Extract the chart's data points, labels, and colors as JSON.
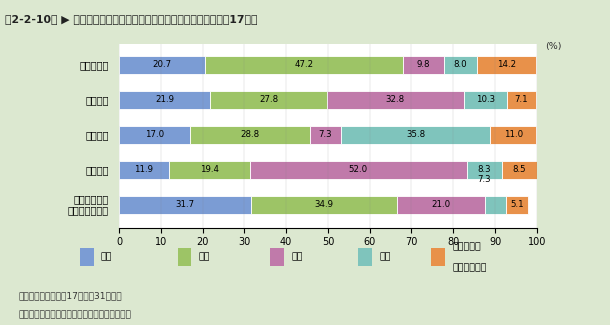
{
  "title": "第2-2-10図 ▶ 非営利団体・公的機関の研究者の専門別構成比（平成17年）",
  "categories": [
    "非営利団体",
    "公的機関",
    "うち国営",
    "うち公営",
    "うち特殊法人\n・独立行政法人"
  ],
  "series_names": [
    "理学",
    "工学",
    "農学",
    "保健",
    "人文・社会\n科学・その他"
  ],
  "series_values": [
    [
      20.7,
      21.9,
      17.0,
      11.9,
      31.7
    ],
    [
      47.2,
      27.8,
      28.8,
      19.4,
      34.9
    ],
    [
      9.8,
      32.8,
      7.3,
      52.0,
      21.0
    ],
    [
      8.0,
      10.3,
      35.8,
      8.3,
      5.1
    ],
    [
      14.2,
      7.1,
      11.0,
      8.5,
      5.1
    ]
  ],
  "bar_labels": [
    [
      "20.7",
      "21.9",
      "17.0",
      "11.9",
      "31.7"
    ],
    [
      "47.2",
      "27.8",
      "28.8",
      "19.4",
      "34.9"
    ],
    [
      "9.8",
      "32.8",
      "7.3",
      "52.0",
      "21.0"
    ],
    [
      "8.0",
      "10.3",
      "35.8",
      "8.3",
      ""
    ],
    [
      "14.2",
      "7.1",
      "11.0",
      "8.5",
      "5.1"
    ]
  ],
  "extra_label_7_3": {
    "row": 3,
    "value": "7.3"
  },
  "colors": [
    "#7b9cd4",
    "#9dc466",
    "#c07aaa",
    "#7fc4bc",
    "#e8914a"
  ],
  "bg_color": "#dce8d0",
  "chart_bg": "#ffffff",
  "xlim": [
    0,
    100
  ],
  "xticks": [
    0,
    10,
    20,
    30,
    40,
    50,
    60,
    70,
    80,
    90,
    100
  ],
  "legend_labels": [
    "理学",
    "工学",
    "農学",
    "保健",
    "人文・社会\n科学・その他"
  ],
  "legend_bg": "#f0f0ec",
  "note1": "注）研究者数は平成17年３月31日現在",
  "note2": "資料：総務省統計局「科学技術研究調査報告」"
}
